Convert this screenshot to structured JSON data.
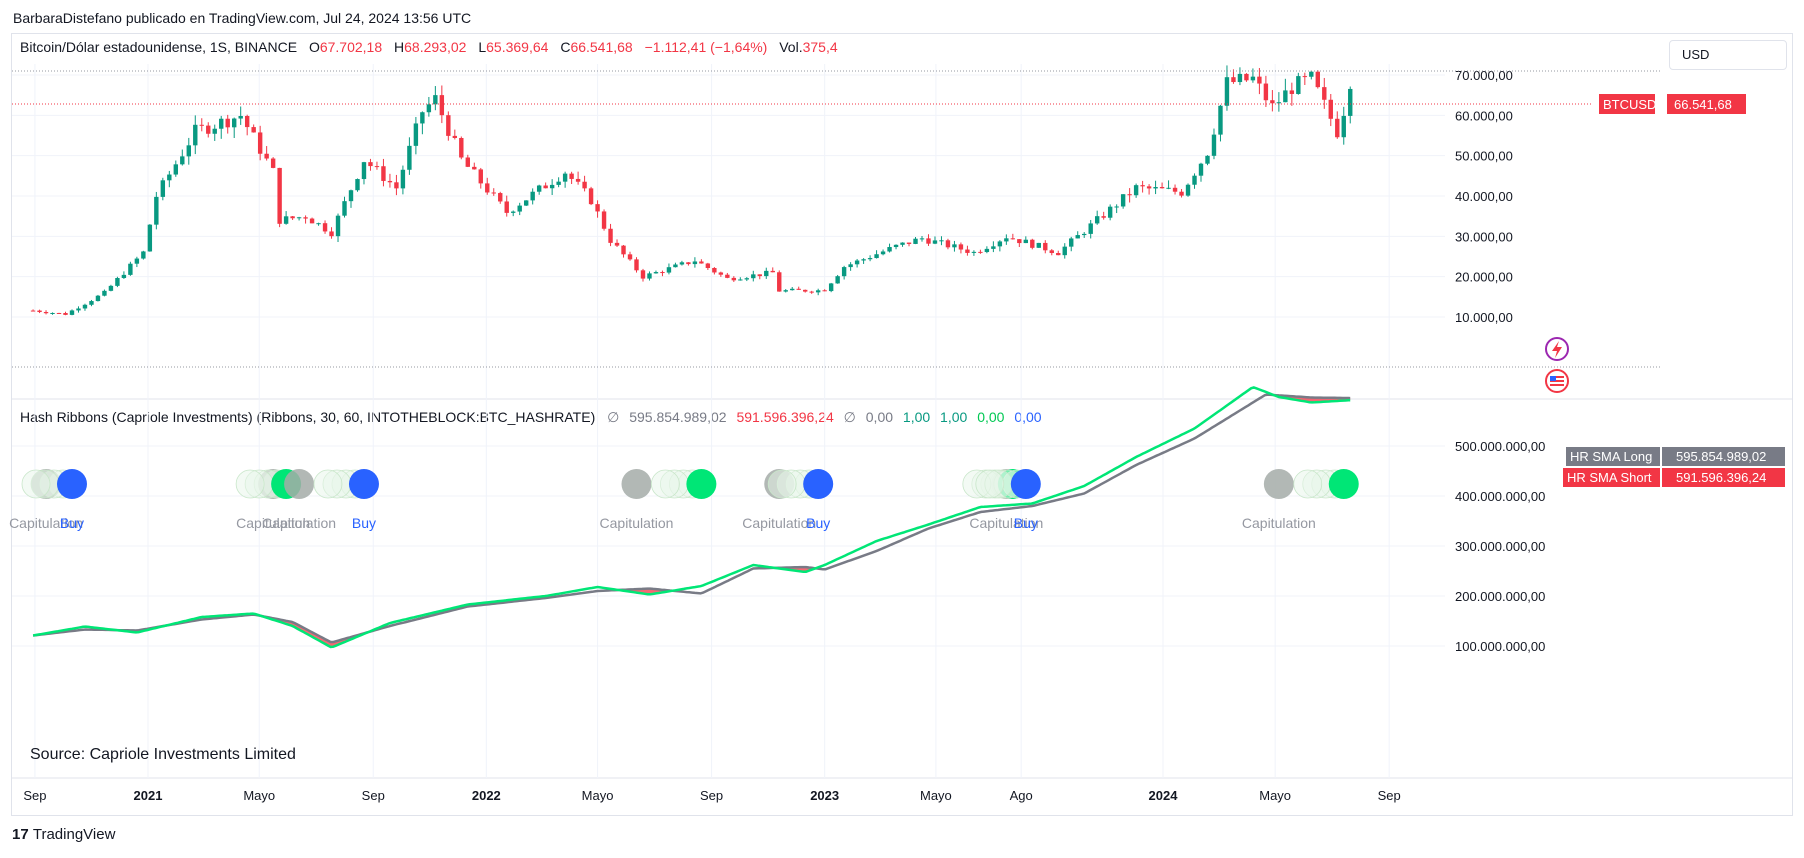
{
  "header": {
    "published": "BarbaraDistefano publicado en TradingView.com, Jul 24, 2024 13:56 UTC"
  },
  "legend": {
    "symbol": "Bitcoin/Dólar estadounidense, 1S, BINANCE",
    "o_label": "O",
    "o_value": "67.702,18",
    "h_label": "H",
    "h_value": "68.293,02",
    "l_label": "L",
    "l_value": "65.369,64",
    "c_label": "C",
    "c_value": "66.541,68",
    "change": "−1.112,41 (−1,64%)",
    "vol_label": "Vol.",
    "vol_value": "375,4"
  },
  "currency_button": "USD",
  "indicator": {
    "name": "Hash Ribbons (Capriole Investments) (Ribbons, 30, 60, INTOTHEBLOCK:BTC_HASHRATE)",
    "sym1": "∅",
    "v1": "595.854.989,02",
    "v2": "591.596.396,24",
    "sym2": "∅",
    "v3": "0,00",
    "v4": "1,00",
    "v5": "1,00",
    "v6": "0,00",
    "v7": "0,00",
    "source": "Source: Capriole Investments Limited"
  },
  "price_tag": {
    "symbol": "BTCUSD",
    "value": "66.541,68"
  },
  "hr_tags": [
    {
      "label": "HR SMA Long",
      "value": "595.854.989,02"
    },
    {
      "label": "HR SMA Short",
      "value": "591.596.396,24"
    }
  ],
  "footer": {
    "brand": "TradingView"
  },
  "colors": {
    "up": "#089981",
    "down": "#f23645",
    "ribbon_short": "#00e676",
    "ribbon_long": "#787b86",
    "buy": "#2962ff",
    "capitulation": "#a5aca8"
  },
  "chart_data": [
    {
      "type": "candlestick",
      "title": "Bitcoin/Dólar estadounidense, 1S, BINANCE",
      "y_ticks": [
        "70.000,00",
        "60.000,00",
        "50.000,00",
        "40.000,00",
        "30.000,00",
        "20.000,00",
        "10.000,00"
      ],
      "ylim": [
        5000,
        76000
      ],
      "x_ticks": [
        "Sep",
        "2021",
        "Mayo",
        "Sep",
        "2022",
        "Mayo",
        "Sep",
        "2023",
        "Mayo",
        "Ago",
        "2024",
        "Mayo",
        "Sep"
      ],
      "anchors": [
        [
          "2020-08-30",
          11600
        ],
        [
          "2020-10-04",
          10700
        ],
        [
          "2020-11-15",
          16000
        ],
        [
          "2020-12-27",
          26000
        ],
        [
          "2021-01-10",
          40000
        ],
        [
          "2021-02-21",
          56000
        ],
        [
          "2021-04-11",
          60000
        ],
        [
          "2021-05-16",
          46000
        ],
        [
          "2021-05-23",
          34000
        ],
        [
          "2021-06-20",
          35000
        ],
        [
          "2021-07-18",
          31000
        ],
        [
          "2021-08-22",
          49000
        ],
        [
          "2021-09-26",
          42000
        ],
        [
          "2021-10-24",
          61000
        ],
        [
          "2021-11-07",
          64000
        ],
        [
          "2021-12-05",
          49000
        ],
        [
          "2022-01-23",
          36000
        ],
        [
          "2022-03-27",
          46000
        ],
        [
          "2022-04-24",
          39000
        ],
        [
          "2022-05-15",
          29000
        ],
        [
          "2022-06-19",
          20000
        ],
        [
          "2022-08-14",
          24000
        ],
        [
          "2022-09-18",
          19500
        ],
        [
          "2022-11-06",
          21000
        ],
        [
          "2022-11-13",
          16500
        ],
        [
          "2022-12-31",
          16600
        ],
        [
          "2023-01-22",
          22500
        ],
        [
          "2023-03-19",
          27500
        ],
        [
          "2023-04-16",
          29500
        ],
        [
          "2023-06-11",
          26000
        ],
        [
          "2023-07-16",
          30000
        ],
        [
          "2023-09-10",
          26000
        ],
        [
          "2023-10-22",
          34000
        ],
        [
          "2023-12-03",
          42000
        ],
        [
          "2024-01-21",
          41000
        ],
        [
          "2024-02-18",
          51000
        ],
        [
          "2024-03-10",
          68000
        ],
        [
          "2024-04-07",
          69000
        ],
        [
          "2024-04-28",
          62000
        ],
        [
          "2024-05-19",
          67000
        ],
        [
          "2024-06-09",
          69000
        ],
        [
          "2024-07-07",
          56000
        ],
        [
          "2024-07-21",
          66541
        ]
      ],
      "last_close": 66541.68
    },
    {
      "type": "line",
      "title": "Hash Ribbons (Capriole Investments)",
      "y_ticks": [
        "500.000.000,00",
        "400.000.000,00",
        "300.000.000,00",
        "200.000.000,00",
        "100.000.000,00"
      ],
      "ylim": [
        40000000,
        670000000
      ],
      "series": [
        {
          "name": "HR SMA Long",
          "color": "#787b86",
          "points": [
            [
              "2020-08-30",
              121000000
            ],
            [
              "2020-10-25",
              133000000
            ],
            [
              "2020-12-20",
              131000000
            ],
            [
              "2021-02-28",
              153000000
            ],
            [
              "2021-04-25",
              163000000
            ],
            [
              "2021-06-06",
              148000000
            ],
            [
              "2021-07-18",
              107000000
            ],
            [
              "2021-09-19",
              140000000
            ],
            [
              "2021-12-12",
              179000000
            ],
            [
              "2022-03-06",
              196000000
            ],
            [
              "2022-05-01",
              210000000
            ],
            [
              "2022-06-26",
              215000000
            ],
            [
              "2022-08-21",
              205000000
            ],
            [
              "2022-10-16",
              255000000
            ],
            [
              "2022-12-11",
              258000000
            ],
            [
              "2023-01-01",
              253000000
            ],
            [
              "2023-02-26",
              290000000
            ],
            [
              "2023-04-23",
              335000000
            ],
            [
              "2023-06-18",
              368000000
            ],
            [
              "2023-08-13",
              380000000
            ],
            [
              "2023-10-08",
              405000000
            ],
            [
              "2023-12-03",
              462000000
            ],
            [
              "2024-02-04",
              515000000
            ],
            [
              "2024-04-21",
              603000000
            ],
            [
              "2024-06-09",
              597000000
            ],
            [
              "2024-07-21",
              595854989
            ]
          ]
        },
        {
          "name": "HR SMA Short",
          "color": "#00e676",
          "points": [
            [
              "2020-08-30",
              121000000
            ],
            [
              "2020-10-25",
              139000000
            ],
            [
              "2020-12-20",
              127000000
            ],
            [
              "2021-02-28",
              158000000
            ],
            [
              "2021-04-25",
              165000000
            ],
            [
              "2021-06-06",
              140000000
            ],
            [
              "2021-07-18",
              97000000
            ],
            [
              "2021-09-19",
              146000000
            ],
            [
              "2021-12-12",
              183000000
            ],
            [
              "2022-03-06",
              200000000
            ],
            [
              "2022-05-01",
              218000000
            ],
            [
              "2022-06-26",
              203000000
            ],
            [
              "2022-08-21",
              220000000
            ],
            [
              "2022-10-16",
              262000000
            ],
            [
              "2022-12-11",
              248000000
            ],
            [
              "2023-01-01",
              262000000
            ],
            [
              "2023-02-26",
              310000000
            ],
            [
              "2023-04-23",
              343000000
            ],
            [
              "2023-06-18",
              378000000
            ],
            [
              "2023-08-13",
              385000000
            ],
            [
              "2023-10-08",
              420000000
            ],
            [
              "2023-12-03",
              478000000
            ],
            [
              "2024-02-04",
              535000000
            ],
            [
              "2024-04-07",
              618000000
            ],
            [
              "2024-05-05",
              598000000
            ],
            [
              "2024-06-09",
              587000000
            ],
            [
              "2024-07-21",
              591596396
            ]
          ]
        }
      ],
      "signals": [
        {
          "date": "2020-09-13",
          "kind": "capitulation",
          "label": "Capitulation"
        },
        {
          "date": "2020-10-11",
          "kind": "buy",
          "label": "Buy"
        },
        {
          "date": "2021-05-16",
          "kind": "capitulation",
          "label": "Capitulation"
        },
        {
          "date": "2021-05-30",
          "kind": "green",
          "label": ""
        },
        {
          "date": "2021-06-13",
          "kind": "capitulation",
          "label": "Capitulation"
        },
        {
          "date": "2021-08-22",
          "kind": "buy",
          "label": "Buy"
        },
        {
          "date": "2022-06-12",
          "kind": "capitulation",
          "label": "Capitulation"
        },
        {
          "date": "2022-08-21",
          "kind": "green",
          "label": ""
        },
        {
          "date": "2022-11-13",
          "kind": "capitulation",
          "label": "Capitulation"
        },
        {
          "date": "2022-12-25",
          "kind": "buy",
          "label": "Buy"
        },
        {
          "date": "2023-07-16",
          "kind": "capitulation",
          "label": "Capitulation"
        },
        {
          "date": "2023-07-23",
          "kind": "green",
          "label": ""
        },
        {
          "date": "2023-08-06",
          "kind": "buy",
          "label": "Buy"
        },
        {
          "date": "2024-05-05",
          "kind": "capitulation",
          "label": "Capitulation"
        },
        {
          "date": "2024-07-14",
          "kind": "green",
          "label": ""
        }
      ]
    }
  ]
}
